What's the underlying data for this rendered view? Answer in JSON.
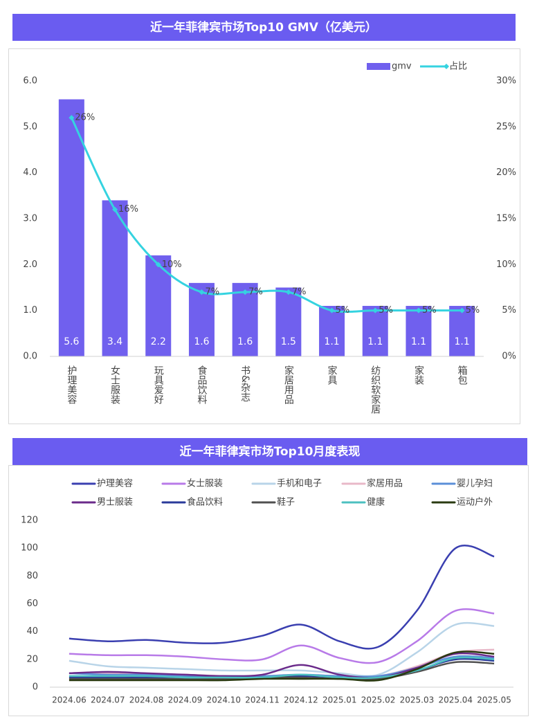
{
  "chart_data": [
    {
      "type": "bar",
      "title": "近一年菲律宾市场Top10 GMV（亿美元）",
      "categories": [
        "护理美容",
        "女士服装",
        "玩具爱好",
        "食品饮料",
        "书&杂志",
        "家居用品",
        "家具",
        "纺织软家居",
        "家装",
        "箱包"
      ],
      "series": [
        {
          "name": "gmv",
          "color": "#7060ee",
          "values": [
            5.6,
            3.4,
            2.2,
            1.6,
            1.6,
            1.5,
            1.1,
            1.1,
            1.1,
            1.1
          ]
        },
        {
          "name": "占比",
          "type": "line",
          "axis": "y2",
          "color": "#35d3e0",
          "values": [
            26,
            16,
            10,
            7,
            7,
            7,
            5,
            5,
            5,
            5
          ],
          "value_labels": [
            "26%",
            "16%",
            "10%",
            "7%",
            "7%",
            "7%",
            "5%",
            "5%",
            "5%",
            "5%"
          ]
        }
      ],
      "ylim": [
        0,
        6
      ],
      "yticks": [
        {
          "value": 0,
          "label": "0.0"
        },
        {
          "value": 1,
          "label": "1.0"
        },
        {
          "value": 2,
          "label": "2.0"
        },
        {
          "value": 3,
          "label": "3.0"
        },
        {
          "value": 4,
          "label": "4.0"
        },
        {
          "value": 5,
          "label": "5.0"
        },
        {
          "value": 6,
          "label": "6.0"
        }
      ],
      "y2lim": [
        0,
        30
      ],
      "y2ticks": [
        {
          "value": 0,
          "label": "0%"
        },
        {
          "value": 5,
          "label": "5%"
        },
        {
          "value": 10,
          "label": "10%"
        },
        {
          "value": 15,
          "label": "15%"
        },
        {
          "value": 20,
          "label": "20%"
        },
        {
          "value": 25,
          "label": "25%"
        },
        {
          "value": 30,
          "label": "30%"
        }
      ],
      "legend": "top-right"
    },
    {
      "type": "line",
      "title": "近一年菲律宾市场Top10月度表现",
      "categories": [
        "2024.06",
        "2024.07",
        "2024.08",
        "2024.09",
        "2024.10",
        "2024.11",
        "2024.12",
        "2025.01",
        "2025.02",
        "2025.03",
        "2025.04",
        "2025.05"
      ],
      "series": [
        {
          "name": "护理美容",
          "color": "#3a3fb0",
          "values": [
            35,
            33,
            34,
            32,
            32,
            37,
            45,
            33,
            29,
            55,
            100,
            94
          ]
        },
        {
          "name": "女士服装",
          "color": "#b87ae8",
          "values": [
            24,
            23,
            23,
            22,
            20,
            20,
            30,
            21,
            18,
            33,
            55,
            53
          ]
        },
        {
          "name": "手机和电子",
          "color": "#b8d4e8",
          "values": [
            19,
            15,
            14,
            13,
            12,
            12,
            12,
            10,
            9,
            25,
            45,
            44
          ]
        },
        {
          "name": "家居用品",
          "color": "#e8b8c8",
          "values": [
            10,
            10,
            9,
            9,
            8,
            8,
            9,
            8,
            8,
            15,
            25,
            27
          ]
        },
        {
          "name": "婴儿孕妇",
          "color": "#5b8fd8",
          "values": [
            10,
            9,
            9,
            8,
            8,
            8,
            9,
            8,
            8,
            14,
            22,
            21
          ]
        },
        {
          "name": "男士服装",
          "color": "#6a2a8a",
          "values": [
            10,
            11,
            10,
            9,
            8,
            9,
            16,
            9,
            7,
            14,
            24,
            22
          ]
        },
        {
          "name": "食品饮料",
          "color": "#2a3a9a",
          "values": [
            7,
            7,
            7,
            7,
            7,
            7,
            8,
            7,
            6,
            12,
            20,
            19
          ]
        },
        {
          "name": "鞋子",
          "color": "#505050",
          "values": [
            6,
            6,
            6,
            6,
            6,
            7,
            7,
            6,
            6,
            11,
            18,
            17
          ]
        },
        {
          "name": "健康",
          "color": "#4cc0c0",
          "values": [
            8,
            8,
            8,
            7,
            7,
            7,
            9,
            7,
            7,
            12,
            21,
            20
          ]
        },
        {
          "name": "运动户外",
          "color": "#2a3a10",
          "values": [
            5,
            5,
            5,
            5,
            5,
            6,
            6,
            6,
            5,
            13,
            25,
            24
          ]
        }
      ],
      "ylim": [
        0,
        120
      ],
      "yticks": [
        0,
        20,
        40,
        60,
        80,
        100,
        120
      ],
      "legend": "top"
    }
  ]
}
